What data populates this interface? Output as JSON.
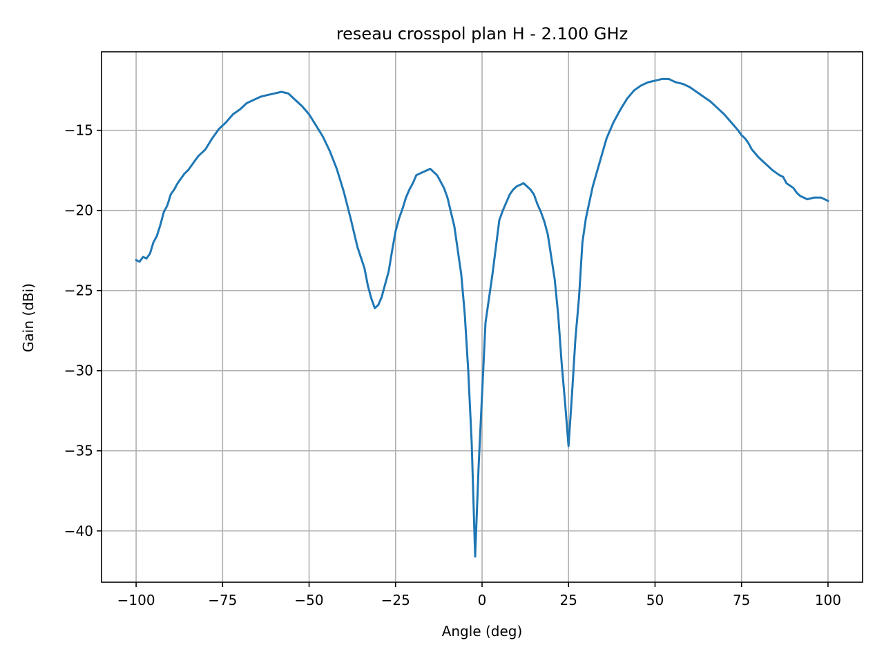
{
  "chart_data": {
    "type": "line",
    "title": "reseau crosspol plan H - 2.100 GHz",
    "xlabel": "Angle (deg)",
    "ylabel": "Gain (dBi)",
    "xlim": [
      -110,
      110
    ],
    "ylim": [
      -43.2,
      -10.1
    ],
    "xticks": [
      -100,
      -75,
      -50,
      -25,
      0,
      25,
      50,
      75,
      100
    ],
    "yticks": [
      -15,
      -20,
      -25,
      -30,
      -35,
      -40
    ],
    "xtick_labels": [
      "−100",
      "−75",
      "−50",
      "−25",
      "0",
      "25",
      "50",
      "75",
      "100"
    ],
    "ytick_labels": [
      "−15",
      "−20",
      "−25",
      "−30",
      "−35",
      "−40"
    ],
    "grid": true,
    "series": [
      {
        "color": "#1f77b4",
        "x": [
          -100,
          -99,
          -98,
          -97,
          -96,
          -95,
          -94,
          -93,
          -92,
          -91,
          -90,
          -89,
          -88,
          -87,
          -86,
          -85,
          -84,
          -83,
          -82,
          -81,
          -80,
          -78,
          -76,
          -74,
          -72,
          -70,
          -68,
          -66,
          -64,
          -62,
          -60,
          -58,
          -56,
          -55,
          -54,
          -52,
          -50,
          -48,
          -46,
          -44,
          -42,
          -40,
          -38,
          -36,
          -34,
          -33,
          -32,
          -31,
          -30,
          -29,
          -28,
          -27,
          -26,
          -25,
          -24,
          -23,
          -22,
          -21,
          -20,
          -19,
          -18,
          -17,
          -16,
          -15,
          -14,
          -13,
          -12,
          -11,
          -10,
          -9,
          -8,
          -7,
          -6,
          -5,
          -4,
          -3,
          -2,
          -1,
          0,
          1,
          2,
          3,
          4,
          5,
          6,
          7,
          8,
          9,
          10,
          11,
          12,
          13,
          14,
          15,
          16,
          17,
          18,
          19,
          20,
          21,
          22,
          23,
          24,
          25,
          26,
          27,
          28,
          29,
          30,
          32,
          34,
          36,
          38,
          40,
          42,
          44,
          46,
          48,
          50,
          52,
          54,
          55,
          56,
          58,
          60,
          62,
          64,
          66,
          68,
          70,
          72,
          74,
          75,
          76,
          77,
          78,
          80,
          82,
          84,
          86,
          87,
          88,
          90,
          91,
          92,
          93,
          94,
          96,
          98,
          100
        ],
        "y": [
          -23.1,
          -23.2,
          -22.9,
          -23.0,
          -22.7,
          -22.0,
          -21.6,
          -20.9,
          -20.1,
          -19.7,
          -19.0,
          -18.7,
          -18.3,
          -18.0,
          -17.7,
          -17.5,
          -17.2,
          -16.9,
          -16.6,
          -16.4,
          -16.2,
          -15.5,
          -14.9,
          -14.5,
          -14.0,
          -13.7,
          -13.3,
          -13.1,
          -12.9,
          -12.8,
          -12.7,
          -12.6,
          -12.7,
          -12.9,
          -13.1,
          -13.5,
          -14.0,
          -14.7,
          -15.4,
          -16.3,
          -17.4,
          -18.8,
          -20.5,
          -22.3,
          -23.6,
          -24.7,
          -25.5,
          -26.1,
          -25.9,
          -25.4,
          -24.6,
          -23.8,
          -22.5,
          -21.3,
          -20.5,
          -19.9,
          -19.2,
          -18.7,
          -18.3,
          -17.8,
          -17.7,
          -17.6,
          -17.5,
          -17.4,
          -17.6,
          -17.8,
          -18.2,
          -18.6,
          -19.2,
          -20.1,
          -21.0,
          -22.5,
          -24.0,
          -26.5,
          -30.0,
          -34.5,
          -41.6,
          -36.0,
          -31.5,
          -27.0,
          -25.5,
          -24.0,
          -22.3,
          -20.6,
          -20.0,
          -19.5,
          -19.0,
          -18.7,
          -18.5,
          -18.4,
          -18.3,
          -18.5,
          -18.7,
          -19.0,
          -19.6,
          -20.1,
          -20.7,
          -21.5,
          -22.9,
          -24.3,
          -26.5,
          -29.5,
          -32.0,
          -34.7,
          -31.5,
          -28.0,
          -25.5,
          -22.0,
          -20.5,
          -18.5,
          -17.0,
          -15.5,
          -14.5,
          -13.7,
          -13.0,
          -12.5,
          -12.2,
          -12.0,
          -11.9,
          -11.8,
          -11.8,
          -11.9,
          -12.0,
          -12.1,
          -12.3,
          -12.6,
          -12.9,
          -13.2,
          -13.6,
          -14.0,
          -14.5,
          -15.0,
          -15.3,
          -15.5,
          -15.8,
          -16.2,
          -16.7,
          -17.1,
          -17.5,
          -17.8,
          -17.9,
          -18.3,
          -18.6,
          -18.9,
          -19.1,
          -19.2,
          -19.3,
          -19.2,
          -19.2,
          -19.4
        ]
      }
    ]
  }
}
